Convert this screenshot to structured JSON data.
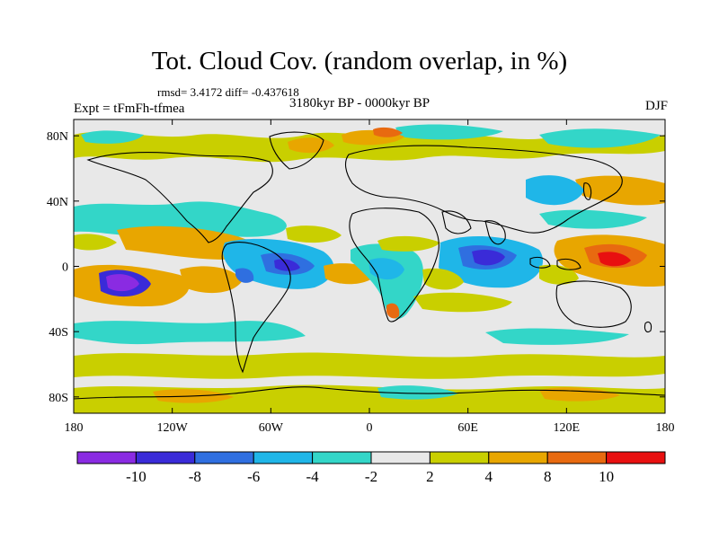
{
  "title": "Tot. Cloud Cov. (random overlap, in %)",
  "stats": "rmsd= 3.4172 diff= -0.437618",
  "period": "3180kyr BP - 0000kyr BP",
  "expt": "Expt = tFmFh-tfmea",
  "season": "DJF",
  "lon_ticks": [
    "180",
    "120W",
    "60W",
    "0",
    "60E",
    "120E",
    "180"
  ],
  "lat_ticks": [
    "80N",
    "40N",
    "0",
    "40S",
    "80S"
  ],
  "colorbar": {
    "labels": [
      "-10",
      "-8",
      "-6",
      "-4",
      "-2",
      "2",
      "4",
      "8",
      "10"
    ],
    "colors": [
      "#8a2be2",
      "#3a2bd8",
      "#2f6fe0",
      "#1fb6e8",
      "#33d6c8",
      "#e8e8e8",
      "#c9cf00",
      "#e8a600",
      "#e86a10",
      "#e81010"
    ]
  },
  "palette": {
    "neutral": "#e8e8e8",
    "olive": "#c9cf00",
    "orange": "#e8a600",
    "darkorange": "#e86a10",
    "red": "#e81010",
    "cyan": "#33d6c8",
    "sky": "#1fb6e8",
    "blue": "#2f6fe0",
    "indigo": "#3a2bd8",
    "violet": "#8a2be2"
  }
}
